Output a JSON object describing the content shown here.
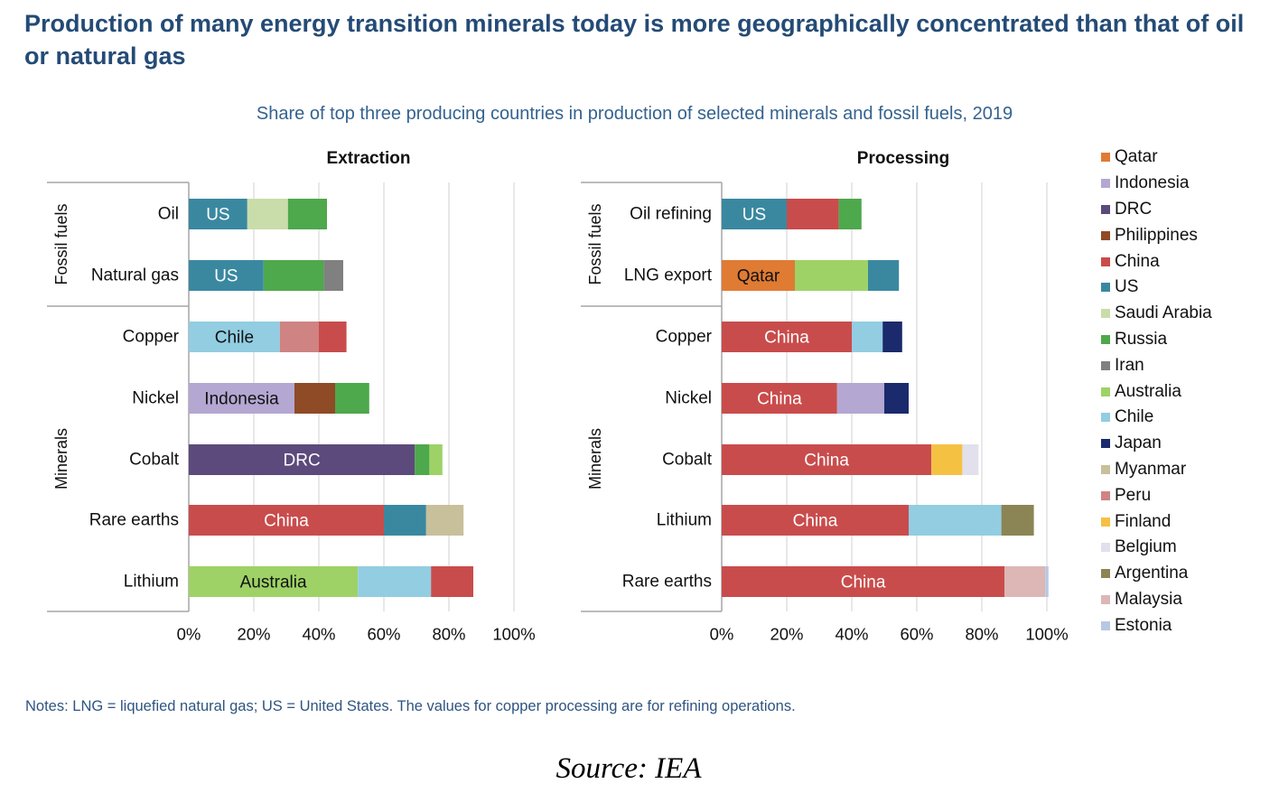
{
  "title": "Production of many energy transition minerals today is more geographically concentrated than that of oil or natural gas",
  "subtitle": "Share of top three producing countries in production of selected minerals and fossil fuels, 2019",
  "notes": "Notes: LNG = liquefied natural gas; US = United States. The values for copper processing are for refining operations.",
  "source": "Source: IEA",
  "colors": {
    "Qatar": "#e07b34",
    "Indonesia": "#b4a7d2",
    "DRC": "#5c4a7c",
    "Philippines": "#8e4b25",
    "China": "#c94c4c",
    "US": "#3a88a0",
    "Saudi Arabia": "#c9ddaa",
    "Russia": "#4ea84c",
    "Iran": "#808080",
    "Australia": "#9ed266",
    "Chile": "#92cde2",
    "Japan": "#1a2a6c",
    "Myanmar": "#c8bf9b",
    "Peru": "#cf8383",
    "Finland": "#f5c143",
    "Belgium": "#e2e0ec",
    "Argentina": "#8b8455",
    "Malaysia": "#ddb6b6",
    "Estonia": "#b8c8e4"
  },
  "legend": [
    "Qatar",
    "Indonesia",
    "DRC",
    "Philippines",
    "China",
    "US",
    "Saudi Arabia",
    "Russia",
    "Iran",
    "Australia",
    "Chile",
    "Japan",
    "Myanmar",
    "Peru",
    "Finland",
    "Belgium",
    "Argentina",
    "Malaysia",
    "Estonia"
  ],
  "chart_data": [
    {
      "type": "bar",
      "orientation": "horizontal",
      "stacked": true,
      "title": "Extraction",
      "xlim": [
        0,
        100
      ],
      "x_ticks": [
        "0%",
        "20%",
        "40%",
        "60%",
        "80%",
        "100%"
      ],
      "grid": true,
      "groups": [
        {
          "label": "Fossil fuels",
          "categories": [
            "Oil",
            "Natural gas"
          ]
        },
        {
          "label": "Minerals",
          "categories": [
            "Copper",
            "Nickel",
            "Cobalt",
            "Rare earths",
            "Lithium"
          ]
        }
      ],
      "bars": [
        {
          "category": "Oil",
          "segments": [
            {
              "country": "US",
              "value": 18,
              "label": "US"
            },
            {
              "country": "Saudi Arabia",
              "value": 12.5
            },
            {
              "country": "Russia",
              "value": 12
            }
          ]
        },
        {
          "category": "Natural gas",
          "segments": [
            {
              "country": "US",
              "value": 23,
              "label": "US"
            },
            {
              "country": "Russia",
              "value": 18.5
            },
            {
              "country": "Iran",
              "value": 6
            }
          ]
        },
        {
          "category": "Copper",
          "segments": [
            {
              "country": "Chile",
              "value": 28,
              "label": "Chile"
            },
            {
              "country": "Peru",
              "value": 12
            },
            {
              "country": "China",
              "value": 8.5
            }
          ]
        },
        {
          "category": "Nickel",
          "segments": [
            {
              "country": "Indonesia",
              "value": 32.5,
              "label": "Indonesia"
            },
            {
              "country": "Philippines",
              "value": 12.5
            },
            {
              "country": "Russia",
              "value": 10.5
            }
          ]
        },
        {
          "category": "Cobalt",
          "segments": [
            {
              "country": "DRC",
              "value": 69.5,
              "label": "DRC"
            },
            {
              "country": "Russia",
              "value": 4.5
            },
            {
              "country": "Australia",
              "value": 4
            }
          ]
        },
        {
          "category": "Rare earths",
          "segments": [
            {
              "country": "China",
              "value": 60,
              "label": "China"
            },
            {
              "country": "US",
              "value": 13
            },
            {
              "country": "Myanmar",
              "value": 11.5
            }
          ]
        },
        {
          "category": "Lithium",
          "segments": [
            {
              "country": "Australia",
              "value": 52,
              "label": "Australia"
            },
            {
              "country": "Chile",
              "value": 22.5
            },
            {
              "country": "China",
              "value": 13
            }
          ]
        }
      ]
    },
    {
      "type": "bar",
      "orientation": "horizontal",
      "stacked": true,
      "title": "Processing",
      "xlim": [
        0,
        100
      ],
      "x_ticks": [
        "0%",
        "20%",
        "40%",
        "60%",
        "80%",
        "100%"
      ],
      "grid": true,
      "groups": [
        {
          "label": "Fossil fuels",
          "categories": [
            "Oil refining",
            "LNG export"
          ]
        },
        {
          "label": "Minerals",
          "categories": [
            "Copper",
            "Nickel",
            "Cobalt",
            "Lithium",
            "Rare earths"
          ]
        }
      ],
      "bars": [
        {
          "category": "Oil refining",
          "segments": [
            {
              "country": "US",
              "value": 20,
              "label": "US"
            },
            {
              "country": "China",
              "value": 16
            },
            {
              "country": "Russia",
              "value": 7
            }
          ]
        },
        {
          "category": "LNG export",
          "segments": [
            {
              "country": "Qatar",
              "value": 22.5,
              "label": "Qatar"
            },
            {
              "country": "Australia",
              "value": 22.5
            },
            {
              "country": "US",
              "value": 9.5
            }
          ]
        },
        {
          "category": "Copper",
          "segments": [
            {
              "country": "China",
              "value": 40,
              "label": "China"
            },
            {
              "country": "Chile",
              "value": 9.5
            },
            {
              "country": "Japan",
              "value": 6
            }
          ]
        },
        {
          "category": "Nickel",
          "segments": [
            {
              "country": "China",
              "value": 35.5,
              "label": "China"
            },
            {
              "country": "Indonesia",
              "value": 14.5
            },
            {
              "country": "Japan",
              "value": 7.5
            }
          ]
        },
        {
          "category": "Cobalt",
          "segments": [
            {
              "country": "China",
              "value": 64.5,
              "label": "China"
            },
            {
              "country": "Finland",
              "value": 9.5
            },
            {
              "country": "Belgium",
              "value": 5
            }
          ]
        },
        {
          "category": "Lithium",
          "segments": [
            {
              "country": "China",
              "value": 57.5,
              "label": "China"
            },
            {
              "country": "Chile",
              "value": 28.5
            },
            {
              "country": "Argentina",
              "value": 10
            }
          ]
        },
        {
          "category": "Rare earths",
          "segments": [
            {
              "country": "China",
              "value": 87,
              "label": "China"
            },
            {
              "country": "Malaysia",
              "value": 12.5
            },
            {
              "country": "Estonia",
              "value": 1
            }
          ]
        }
      ]
    }
  ]
}
